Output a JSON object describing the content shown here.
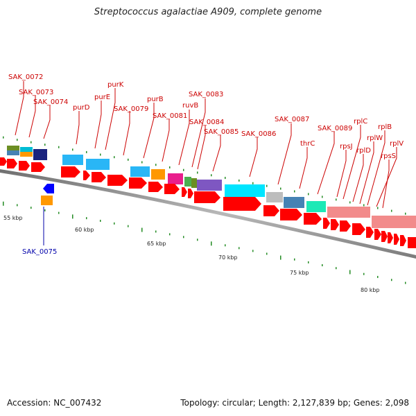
{
  "header": {
    "title": "Streptococcus agalactiae A909, complete genome"
  },
  "footer": {
    "accession": "Accession: NC_007432",
    "summary": "Topology: circular; Length: 2,127,839 bp; Genes: 2,098"
  },
  "colors": {
    "backbone": "#9a9a9a",
    "cds_arrow": "#ff0000",
    "rna_arrow": "#0000ff",
    "label_forward": "#cc0000",
    "label_reverse": "#0000aa",
    "tick": "#228b22"
  },
  "kbp_ticks": [
    "55 kbp",
    "60 kbp",
    "65 kbp",
    "70 kbp",
    "75 kbp",
    "80 kbp"
  ],
  "gene_labels_forward": [
    "SAK_0072",
    "SAK_0073",
    "SAK_0074",
    "purD",
    "purE",
    "purK",
    "SAK_0079",
    "purB",
    "SAK_0081",
    "ruvB",
    "SAK_0083",
    "SAK_0084",
    "SAK_0085",
    "SAK_0086",
    "SAK_0087",
    "thrC",
    "SAK_0089",
    "rpsJ",
    "rplC",
    "rplD",
    "rplW",
    "rplB",
    "rpsS",
    "rplV"
  ],
  "gene_labels_reverse": [
    "SAK_0075"
  ]
}
